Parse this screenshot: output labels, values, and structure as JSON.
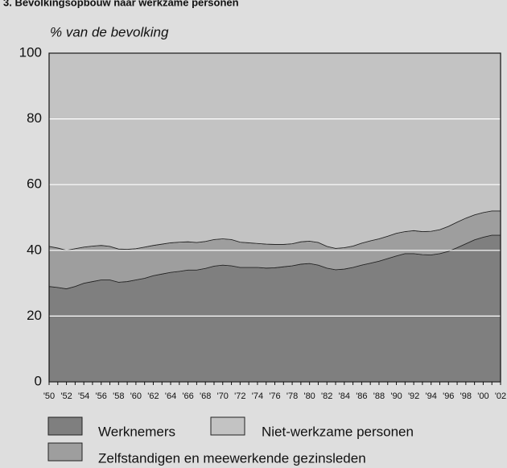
{
  "chart_data": {
    "type": "stacked-area",
    "title": "3. Bevolkingsopbouw naar werkzame personen",
    "y_axis_label": "% van de bevolking",
    "categories": [
      "'50",
      null,
      "'52",
      null,
      "'54",
      null,
      "'56",
      null,
      "'58",
      null,
      "'60",
      null,
      "'62",
      null,
      "'64",
      null,
      "'66",
      null,
      "'68",
      null,
      "'70",
      null,
      "'72",
      null,
      "'74",
      null,
      "'76",
      null,
      "'78",
      null,
      "'80",
      null,
      "'82",
      null,
      "'84",
      null,
      "'86",
      null,
      "'88",
      null,
      "'90",
      null,
      "'92",
      null,
      "'94",
      null,
      "'96",
      null,
      "'98",
      null,
      "'00",
      null,
      "'02"
    ],
    "series": [
      {
        "name": "Werknemers",
        "color": "#7f7f7f",
        "values": [
          29,
          28.7,
          28.3,
          29,
          30,
          30.5,
          31,
          31,
          30.3,
          30.5,
          31,
          31.5,
          32.3,
          32.8,
          33.3,
          33.6,
          34,
          34,
          34.5,
          35.2,
          35.5,
          35.3,
          34.8,
          34.8,
          34.8,
          34.6,
          34.7,
          35,
          35.3,
          35.8,
          36,
          35.5,
          34.6,
          34.1,
          34.3,
          34.8,
          35.5,
          36.1,
          36.7,
          37.5,
          38.3,
          39,
          39,
          38.7,
          38.6,
          39,
          39.7,
          40.8,
          42,
          43.2,
          44,
          44.6,
          44.6
        ]
      },
      {
        "name": "Zelfstandigen en meewerkende gezinsleden",
        "color": "#9e9e9e",
        "values": [
          12.2,
          12,
          11.7,
          11.5,
          11,
          10.8,
          10.5,
          10.2,
          10.1,
          9.8,
          9.5,
          9.5,
          9.2,
          9.1,
          9,
          8.9,
          8.6,
          8.4,
          8.2,
          8.1,
          8,
          8,
          7.7,
          7.5,
          7.3,
          7.3,
          7.1,
          6.8,
          6.7,
          6.8,
          6.8,
          6.9,
          6.6,
          6.5,
          6.5,
          6.5,
          6.7,
          6.8,
          6.8,
          6.8,
          6.9,
          6.7,
          7,
          7,
          7.2,
          7.3,
          7.6,
          7.8,
          7.8,
          7.6,
          7.5,
          7.4,
          7.4
        ]
      },
      {
        "name": "Niet-werkzame personen",
        "color": "#c3c3c3",
        "values": [
          58.8,
          59.3,
          60,
          59.5,
          59,
          58.7,
          58.5,
          58.8,
          59.6,
          59.7,
          59.5,
          59,
          58.5,
          58.1,
          57.7,
          57.5,
          57.4,
          57.6,
          57.3,
          56.7,
          56.5,
          56.7,
          57.5,
          57.7,
          57.9,
          58.1,
          58.2,
          58.2,
          58,
          57.4,
          57.2,
          57.6,
          58.8,
          59.4,
          59.2,
          58.7,
          57.8,
          57.1,
          56.5,
          55.7,
          54.8,
          54.3,
          54,
          54.3,
          54.2,
          53.7,
          52.7,
          51.4,
          50.2,
          49.2,
          48.5,
          48,
          48
        ]
      }
    ],
    "ylim": [
      0,
      100
    ],
    "yticks": [
      0,
      20,
      40,
      60,
      80,
      100
    ],
    "grid": true
  }
}
